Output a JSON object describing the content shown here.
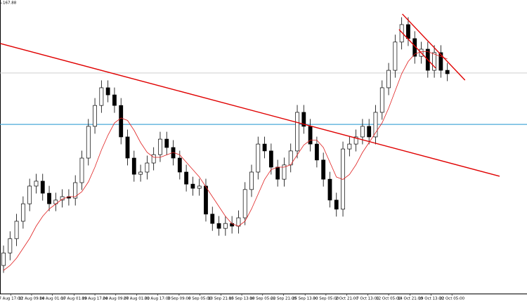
{
  "chart_data": {
    "type": "candlestick",
    "xlim": [
      -0.54,
      80.2
    ],
    "ylim": [
      156,
      168
    ],
    "yticks": [
      167.88
    ],
    "xticks": [
      {
        "value": 1.1,
        "label": "7 Aug 17:00"
      },
      {
        "value": 4.3,
        "label": "12 Aug 09:00"
      },
      {
        "value": 7.5,
        "label": "14 Aug 01:00"
      },
      {
        "value": 10.8,
        "label": "17 Aug 01:00"
      },
      {
        "value": 14.0,
        "label": "19 Aug 17:00"
      },
      {
        "value": 17.2,
        "label": "24 Aug 09:00"
      },
      {
        "value": 20.4,
        "label": "27 Aug 01:00"
      },
      {
        "value": 23.6,
        "label": "31 Aug 17:00"
      },
      {
        "value": 26.9,
        "label": "3 Sep 09:00"
      },
      {
        "value": 30.1,
        "label": "8 Sep 05:00"
      },
      {
        "value": 33.3,
        "label": "10 Sep 21:00"
      },
      {
        "value": 36.5,
        "label": "15 Sep 13:00"
      },
      {
        "value": 39.7,
        "label": "18 Sep 05:00"
      },
      {
        "value": 42.9,
        "label": "22 Sep 21:00"
      },
      {
        "value": 46.2,
        "label": "25 Sep 13:00"
      },
      {
        "value": 49.4,
        "label": "30 Sep 05:00"
      },
      {
        "value": 52.6,
        "label": "2 Oct 21:00"
      },
      {
        "value": 55.8,
        "label": "7 Oct 13:00"
      },
      {
        "value": 59.0,
        "label": "12 Oct 05:00"
      },
      {
        "value": 62.3,
        "label": "14 Oct 21:00"
      },
      {
        "value": 65.5,
        "label": "19 Oct 13:00"
      },
      {
        "value": 68.7,
        "label": "22 Oct 05:00"
      }
    ],
    "open": [
      157.2,
      157.71,
      158.29,
      159.0,
      159.71,
      160.43,
      160.63,
      160.14,
      159.71,
      159.86,
      160.0,
      159.94,
      160.57,
      161.57,
      162.86,
      163.71,
      164.43,
      164.14,
      163.71,
      162.43,
      161.57,
      160.91,
      161.0,
      161.37,
      161.71,
      162.34,
      162.0,
      161.57,
      161.0,
      160.51,
      160.34,
      160.43,
      159.29,
      158.91,
      158.71,
      158.91,
      158.8,
      159.14,
      160.29,
      161.0,
      162.14,
      161.86,
      161.2,
      160.71,
      161.29,
      161.86,
      163.43,
      162.86,
      162.14,
      161.49,
      160.71,
      159.86,
      159.49,
      161.94,
      162.14,
      162.43,
      162.86,
      162.43,
      163.43,
      164.43,
      165.14,
      166.29,
      167.0,
      166.43,
      165.71,
      166.0,
      165.14,
      165.86,
      165.14
    ],
    "high": [
      158.01,
      158.59,
      159.3,
      160.01,
      160.73,
      160.93,
      160.93,
      160.44,
      160.16,
      160.3,
      160.3,
      160.87,
      161.87,
      163.16,
      164.01,
      164.73,
      164.73,
      164.44,
      164.01,
      162.73,
      161.87,
      161.3,
      161.67,
      162.01,
      162.64,
      162.64,
      162.3,
      161.87,
      161.3,
      160.81,
      160.73,
      160.73,
      159.59,
      159.21,
      159.21,
      159.21,
      159.44,
      160.59,
      161.3,
      162.44,
      162.44,
      162.16,
      161.5,
      161.59,
      162.16,
      163.73,
      163.73,
      163.16,
      162.44,
      161.79,
      161.01,
      160.16,
      162.24,
      162.44,
      162.73,
      163.16,
      163.16,
      163.73,
      164.73,
      165.44,
      166.59,
      167.3,
      167.3,
      166.73,
      166.3,
      166.3,
      166.16,
      166.16,
      165.44
    ],
    "low": [
      156.9,
      157.41,
      157.99,
      158.7,
      159.41,
      160.13,
      159.84,
      159.41,
      159.41,
      159.56,
      159.64,
      159.64,
      160.27,
      161.27,
      162.56,
      163.41,
      163.84,
      163.41,
      162.13,
      161.27,
      160.61,
      160.61,
      160.7,
      161.07,
      161.41,
      161.7,
      161.27,
      160.7,
      160.21,
      160.04,
      160.04,
      158.99,
      158.61,
      158.41,
      158.41,
      158.5,
      158.5,
      158.84,
      159.99,
      160.7,
      161.56,
      160.9,
      160.41,
      160.41,
      160.99,
      161.56,
      162.56,
      161.84,
      161.19,
      160.41,
      159.56,
      159.19,
      159.19,
      161.64,
      161.84,
      162.13,
      162.13,
      162.13,
      163.13,
      164.13,
      164.84,
      165.99,
      166.13,
      165.41,
      165.41,
      164.84,
      164.84,
      164.84,
      164.7
    ],
    "close": [
      157.71,
      158.29,
      159.0,
      159.71,
      160.43,
      160.63,
      160.14,
      159.71,
      159.86,
      160.0,
      159.94,
      160.57,
      161.57,
      162.86,
      163.71,
      164.43,
      164.14,
      163.71,
      162.43,
      161.57,
      160.91,
      161.0,
      161.37,
      161.71,
      162.34,
      162.0,
      161.57,
      161.0,
      160.51,
      160.34,
      160.43,
      159.29,
      158.91,
      158.71,
      158.91,
      158.8,
      159.14,
      160.29,
      161.0,
      162.14,
      161.86,
      161.2,
      160.71,
      161.29,
      161.86,
      163.43,
      162.86,
      162.14,
      161.49,
      160.71,
      159.86,
      159.49,
      161.94,
      162.14,
      162.43,
      162.86,
      162.43,
      163.43,
      164.43,
      165.14,
      166.29,
      167.0,
      166.43,
      165.71,
      166.0,
      165.14,
      165.86,
      165.14,
      165.0
    ],
    "moving_average": {
      "color": "#e02020",
      "values": [
        157.0,
        157.2,
        157.5,
        157.9,
        158.3,
        158.8,
        159.2,
        159.5,
        159.7,
        159.9,
        160.0,
        160.0,
        160.2,
        160.6,
        161.2,
        161.9,
        162.5,
        163.0,
        163.2,
        163.1,
        162.7,
        162.2,
        161.8,
        161.6,
        161.6,
        161.7,
        161.8,
        161.7,
        161.4,
        161.1,
        160.8,
        160.4,
        160.0,
        159.6,
        159.2,
        158.9,
        158.8,
        159.0,
        159.5,
        160.1,
        160.7,
        161.1,
        161.2,
        161.2,
        161.3,
        161.7,
        162.1,
        162.3,
        162.3,
        162.0,
        161.4,
        160.8,
        160.7,
        160.9,
        161.3,
        161.8,
        162.2,
        162.6,
        163.0,
        163.6,
        164.3,
        165.0,
        165.5,
        165.8,
        165.9,
        165.9,
        165.8,
        165.7,
        165.6
      ]
    },
    "hlines": [
      {
        "value": 165.03,
        "color": "#c8c8c8"
      },
      {
        "value": 162.94,
        "color": "#4aa8d8"
      }
    ],
    "trendlines": [
      {
        "x": [
          -0.5,
          76
        ],
        "y": [
          166.23,
          160.83
        ],
        "color": "#e00000"
      },
      {
        "x": [
          61.1,
          70.7
        ],
        "y": [
          167.43,
          164.74
        ],
        "color": "#e00000"
      },
      {
        "x": [
          60.6,
          66.2
        ],
        "y": [
          166.8,
          165.23
        ],
        "color": "#e00000"
      }
    ],
    "bull_color": "#ffffff",
    "bear_color": "#000000"
  }
}
